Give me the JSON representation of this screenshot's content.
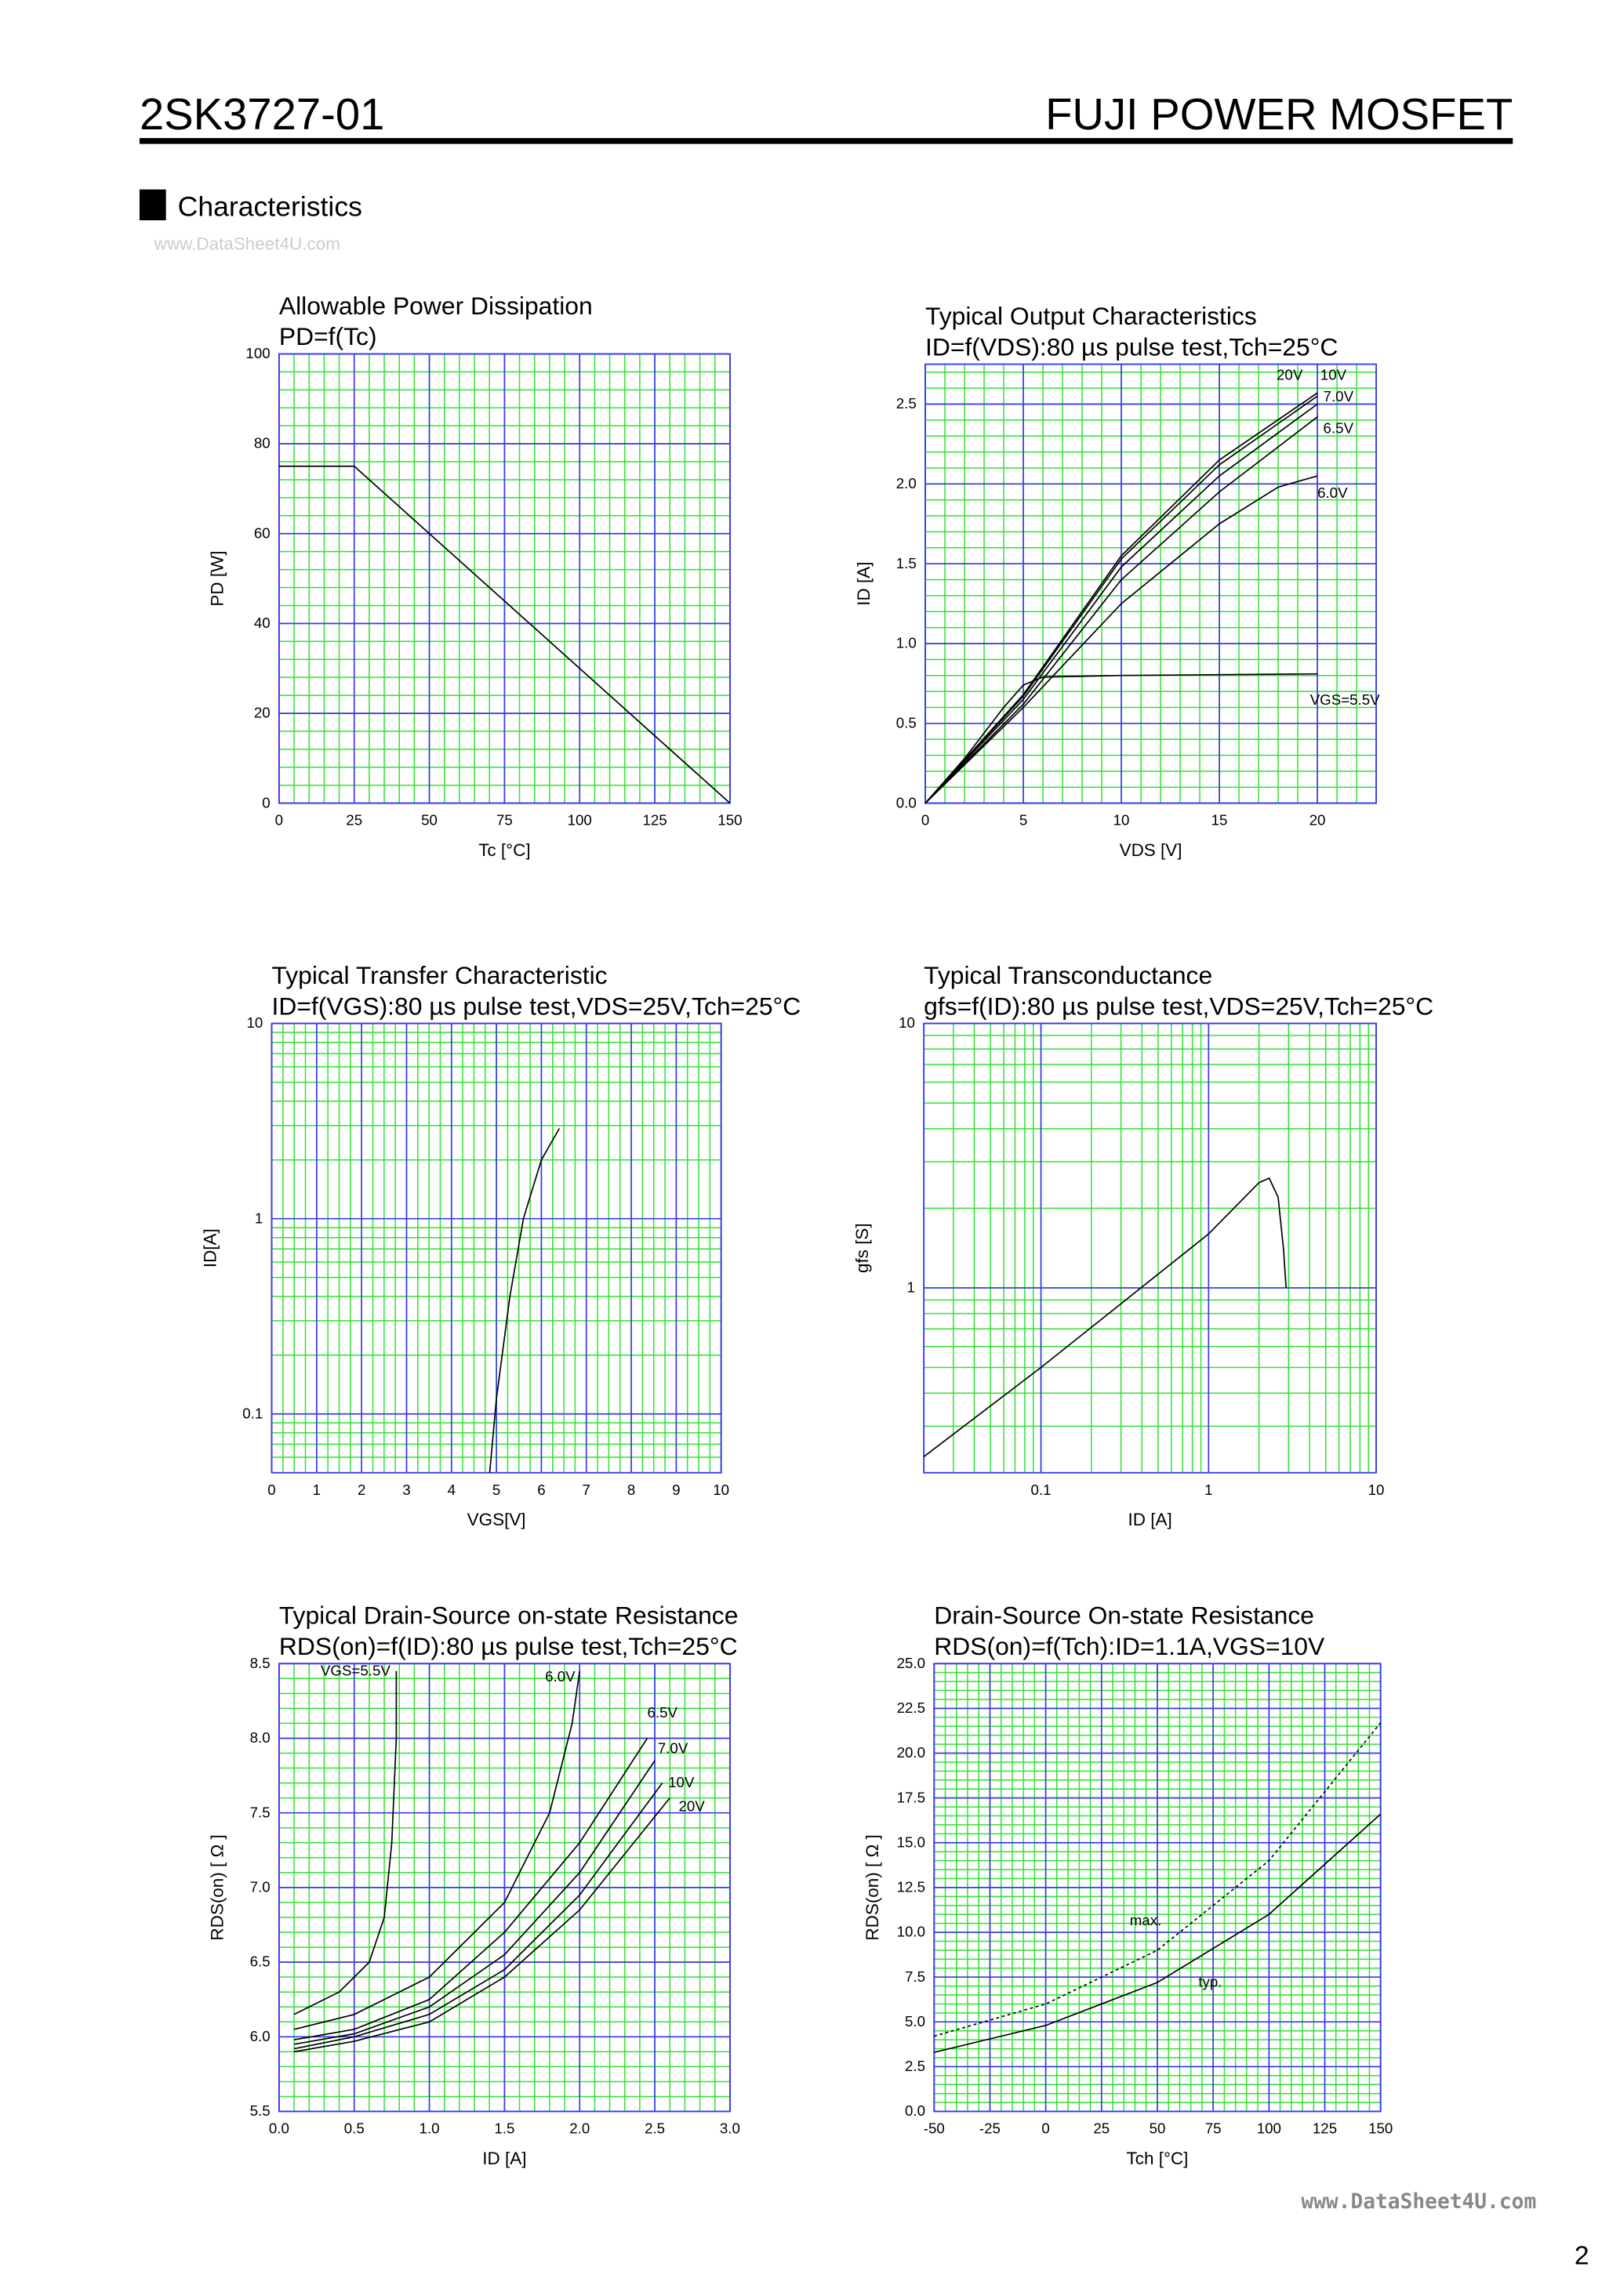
{
  "header": {
    "part": "2SK3727-01",
    "brand": "FUJI POWER MOSFET",
    "section": "Characteristics",
    "watermark": "www.DataSheet4U.com",
    "footer_watermark": "www.DataSheet4U.com",
    "page": "2"
  },
  "chart_data": [
    {
      "type": "line",
      "title": "Allowable Power Dissipation",
      "subtitle": "PD=f(Tc)",
      "xlabel": "Tc [°C]",
      "ylabel": "PD [W]",
      "xlim": [
        0,
        150
      ],
      "ylim": [
        0,
        100
      ],
      "xticks": [
        0,
        25,
        50,
        75,
        100,
        125,
        150
      ],
      "yticks": [
        0,
        20,
        40,
        60,
        80,
        100
      ],
      "grid": true,
      "minor_divisions": 5,
      "series": [
        {
          "color": "#000000",
          "x": [
            0,
            25,
            150
          ],
          "values": [
            75,
            75,
            0
          ]
        }
      ]
    },
    {
      "type": "line",
      "title": "Typical Output Characteristics",
      "subtitle": "ID=f(VDS):80 µs pulse test,Tch=25°C",
      "xlabel": "VDS [V]",
      "ylabel": "ID [A]",
      "xlim": [
        0,
        23
      ],
      "ylim": [
        0,
        2.75
      ],
      "xticks": [
        0,
        5,
        10,
        15,
        20
      ],
      "yticks": [
        {
          "value": 0,
          "label": "0.0"
        },
        0.5,
        {
          "value": 1,
          "label": "1.0"
        },
        1.5,
        {
          "value": 2,
          "label": "2.0"
        },
        2.5
      ],
      "grid": true,
      "minor_divisions": 5,
      "series": [
        {
          "name": "20V",
          "color": "#000000",
          "x": [
            0,
            5,
            10,
            15,
            20
          ],
          "values": [
            0,
            0.68,
            1.55,
            2.15,
            2.57
          ]
        },
        {
          "name": "10V",
          "color": "#000000",
          "x": [
            0,
            5,
            10,
            15,
            20
          ],
          "values": [
            0,
            0.67,
            1.53,
            2.12,
            2.55
          ]
        },
        {
          "name": "7.0V",
          "color": "#000000",
          "x": [
            0,
            5,
            10,
            15,
            20
          ],
          "values": [
            0,
            0.65,
            1.48,
            2.05,
            2.5
          ]
        },
        {
          "name": "6.5V",
          "color": "#000000",
          "x": [
            0,
            5,
            10,
            15,
            20
          ],
          "values": [
            0,
            0.62,
            1.4,
            1.95,
            2.42
          ]
        },
        {
          "name": "6.0V",
          "color": "#000000",
          "x": [
            0,
            5,
            10,
            15,
            18,
            20
          ],
          "values": [
            0,
            0.6,
            1.25,
            1.75,
            1.98,
            2.05
          ]
        },
        {
          "name": "VGS=5.5V",
          "color": "#000000",
          "x": [
            0,
            2,
            4,
            5,
            6,
            10,
            20
          ],
          "values": [
            0,
            0.28,
            0.6,
            0.74,
            0.79,
            0.8,
            0.81
          ]
        }
      ]
    },
    {
      "type": "line",
      "title": "Typical Transfer Characteristic",
      "subtitle": "ID=f(VGS):80 µs pulse test,VDS=25V,Tch=25°C",
      "xlabel": "VGS[V]",
      "ylabel": "ID[A]",
      "xlim": [
        0,
        10
      ],
      "ylim": [
        0.05,
        10
      ],
      "yscale": "log",
      "xticks": [
        0,
        1,
        2,
        3,
        4,
        5,
        6,
        7,
        8,
        9,
        10
      ],
      "yticks": [
        0.1,
        1,
        10
      ],
      "grid": true,
      "minor_divisions": 4,
      "series": [
        {
          "color": "#000000",
          "x": [
            4.85,
            5.0,
            5.3,
            5.6,
            6.0,
            6.4
          ],
          "values": [
            0.05,
            0.12,
            0.4,
            1.0,
            2.0,
            2.9
          ]
        }
      ]
    },
    {
      "type": "line",
      "title": "Typical Transconductance",
      "subtitle": "gfs=f(ID):80 µs pulse test,VDS=25V,Tch=25°C",
      "xlabel": "ID [A]",
      "ylabel": "gfs [S]",
      "xlim": [
        0.02,
        10
      ],
      "ylim": [
        0.2,
        10
      ],
      "xscale": "log",
      "yscale": "log",
      "xticks": [
        0.1,
        1,
        10
      ],
      "yticks": [
        1,
        10
      ],
      "grid": true,
      "series": [
        {
          "color": "#000000",
          "x": [
            0.02,
            0.1,
            1,
            2,
            2.3,
            2.6,
            2.8,
            2.9
          ],
          "values": [
            0.23,
            0.5,
            1.6,
            2.5,
            2.6,
            2.2,
            1.4,
            1.0
          ]
        }
      ]
    },
    {
      "type": "line",
      "title": "Typical Drain-Source on-state Resistance",
      "subtitle": "RDS(on)=f(ID):80  µs pulse test,Tch=25°C",
      "xlabel": "ID [A]",
      "ylabel": "RDS(on) [ Ω ]",
      "xlim": [
        0,
        3
      ],
      "ylim": [
        5.5,
        8.5
      ],
      "xticks": [
        {
          "value": 0,
          "label": "0.0"
        },
        0.5,
        {
          "value": 1,
          "label": "1.0"
        },
        1.5,
        {
          "value": 2,
          "label": "2.0"
        },
        2.5,
        {
          "value": 3,
          "label": "3.0"
        }
      ],
      "yticks": [
        5.5,
        {
          "value": 6,
          "label": "6.0"
        },
        6.5,
        {
          "value": 7,
          "label": "7.0"
        },
        7.5,
        {
          "value": 8,
          "label": "8.0"
        },
        8.5
      ],
      "grid": true,
      "minor_divisions": 5,
      "series": [
        {
          "name": "VGS=5.5V",
          "color": "#000000",
          "x": [
            0.1,
            0.4,
            0.6,
            0.7,
            0.75,
            0.78,
            0.78
          ],
          "values": [
            6.15,
            6.3,
            6.5,
            6.8,
            7.3,
            8.0,
            8.45
          ]
        },
        {
          "name": "6.0V",
          "color": "#000000",
          "x": [
            0.1,
            0.5,
            1.0,
            1.5,
            1.8,
            1.95,
            2.0
          ],
          "values": [
            6.05,
            6.15,
            6.4,
            6.9,
            7.5,
            8.1,
            8.45
          ]
        },
        {
          "name": "6.5V",
          "color": "#000000",
          "x": [
            0.1,
            0.5,
            1.0,
            1.5,
            2.0,
            2.45
          ],
          "values": [
            5.98,
            6.05,
            6.25,
            6.7,
            7.3,
            8.0
          ]
        },
        {
          "name": "7.0V",
          "color": "#000000",
          "x": [
            0.1,
            0.5,
            1.0,
            1.5,
            2.0,
            2.5
          ],
          "values": [
            5.95,
            6.02,
            6.2,
            6.55,
            7.1,
            7.85
          ]
        },
        {
          "name": "10V",
          "color": "#000000",
          "x": [
            0.1,
            0.5,
            1.0,
            1.5,
            2.0,
            2.55
          ],
          "values": [
            5.92,
            6.0,
            6.15,
            6.45,
            6.95,
            7.7
          ]
        },
        {
          "name": "20V",
          "color": "#000000",
          "x": [
            0.1,
            0.5,
            1.0,
            1.5,
            2.0,
            2.6
          ],
          "values": [
            5.9,
            5.97,
            6.1,
            6.4,
            6.85,
            7.6
          ]
        }
      ]
    },
    {
      "type": "line",
      "title": "Drain-Source On-state Resistance",
      "subtitle": "RDS(on)=f(Tch):ID=1.1A,VGS=10V",
      "xlabel": "Tch [°C]",
      "ylabel": "RDS(on) [ Ω ]",
      "xlim": [
        -50,
        150
      ],
      "ylim": [
        0,
        25
      ],
      "xticks": [
        -50,
        -25,
        0,
        25,
        50,
        75,
        100,
        125,
        150
      ],
      "yticks": [
        {
          "value": 0,
          "label": "0.0"
        },
        2.5,
        {
          "value": 5,
          "label": "5.0"
        },
        7.5,
        {
          "value": 10,
          "label": "10.0"
        },
        12.5,
        {
          "value": 15,
          "label": "15.0"
        },
        17.5,
        {
          "value": 20,
          "label": "20.0"
        },
        22.5,
        {
          "value": 25,
          "label": "25.0"
        }
      ],
      "grid": true,
      "minor_divisions": 5,
      "series": [
        {
          "name": "max.",
          "color": "#000000",
          "dash": true,
          "x": [
            -50,
            0,
            50,
            100,
            150
          ],
          "values": [
            4.2,
            6.0,
            9.0,
            14,
            21.7
          ]
        },
        {
          "name": "typ.",
          "color": "#000000",
          "x": [
            -50,
            0,
            50,
            100,
            150
          ],
          "values": [
            3.3,
            4.8,
            7.2,
            11,
            16.6
          ]
        }
      ]
    }
  ]
}
